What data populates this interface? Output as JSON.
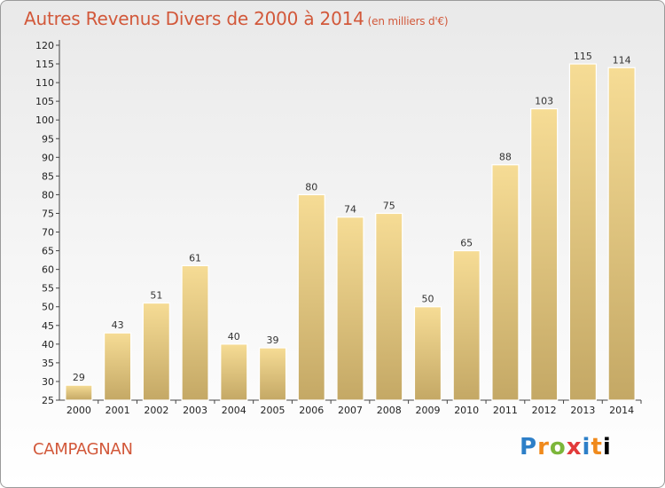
{
  "header": {
    "title": "Autres Revenus Divers de 2000 à 2014",
    "subtitle": "(en milliers d'€)"
  },
  "footer": {
    "commune": "CAMPAGNAN",
    "logo_letters": [
      "P",
      "r",
      "o",
      "x",
      "i",
      "t",
      "i"
    ]
  },
  "colors": {
    "title": "#d2583a",
    "bar_top": "#f6dc95",
    "bar_bottom": "#c4a865",
    "bar_border": "#ffffff"
  },
  "chart_data": {
    "type": "bar",
    "title": "Autres Revenus Divers de 2000 à 2014",
    "subtitle": "(en milliers d'€)",
    "categories": [
      "2000",
      "2001",
      "2002",
      "2003",
      "2004",
      "2005",
      "2006",
      "2007",
      "2008",
      "2009",
      "2010",
      "2011",
      "2012",
      "2013",
      "2014"
    ],
    "values": [
      29,
      43,
      51,
      61,
      40,
      39,
      80,
      74,
      75,
      50,
      65,
      88,
      103,
      115,
      114
    ],
    "ylim": [
      25,
      120
    ],
    "yticks": [
      25,
      30,
      35,
      40,
      45,
      50,
      55,
      60,
      65,
      70,
      75,
      80,
      85,
      90,
      95,
      100,
      105,
      110,
      115,
      120
    ],
    "grid": false,
    "legend": "none"
  }
}
